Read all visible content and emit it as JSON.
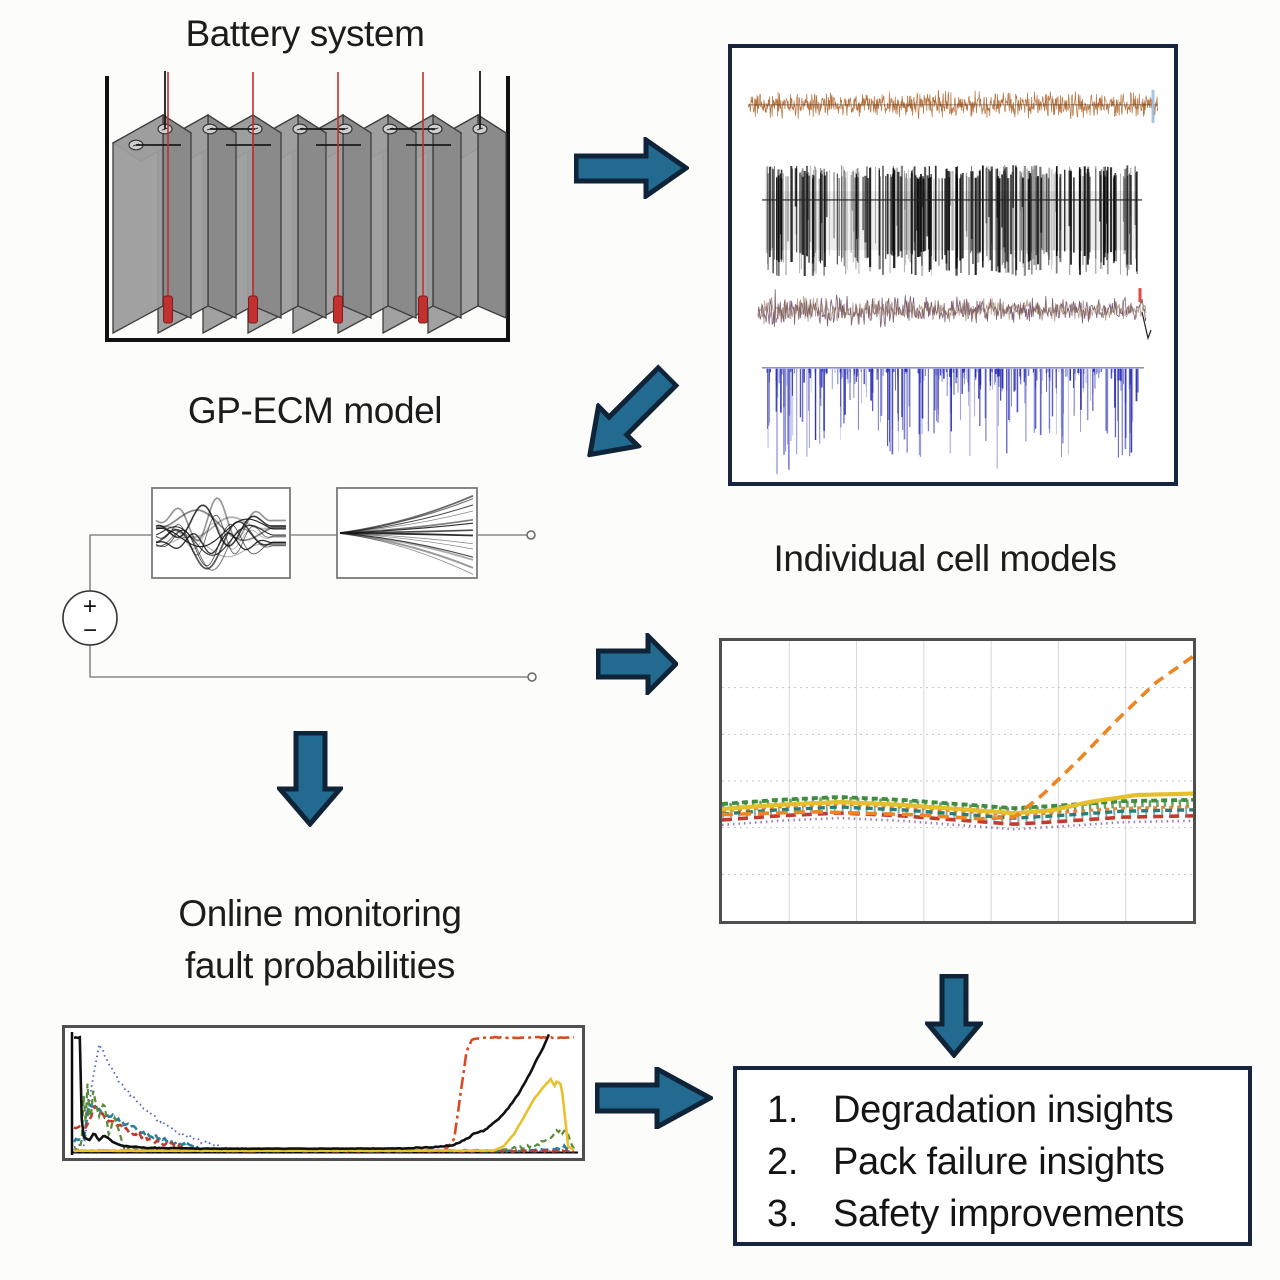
{
  "labels": {
    "battery_title": "Battery system",
    "gpecm_title": "GP-ECM model",
    "cell_models_title": "Individual cell models",
    "monitoring_title_line1": "Online monitoring",
    "monitoring_title_line2": "fault probabilities"
  },
  "insights_box": {
    "items": [
      {
        "number": "1.",
        "text": "Degradation insights"
      },
      {
        "number": "2.",
        "text": "Pack failure insights"
      },
      {
        "number": "3.",
        "text": "Safety improvements"
      }
    ]
  },
  "colors": {
    "arrow_fill": "#226a8f",
    "arrow_stroke": "#0f2438",
    "panel_border": "#17253f",
    "plot_border": "#4f4f4f",
    "title_text": "#1c1c1c"
  },
  "battery": {
    "cell_count": 8,
    "tap_positions": [
      73,
      158,
      243,
      328
    ],
    "top_color": "#b8b8b8",
    "side_color": "#8a8a8a",
    "face_color": "#9c9c9c",
    "edge_color": "#3d3d3d",
    "tap_color": "#c23030",
    "tap_edge": "#7a1f1f",
    "container_color": "#111111"
  },
  "circuit": {
    "source_plus": "+",
    "source_minus": "−",
    "gp_sample_curves": 13,
    "fan_lines": 14,
    "wire_color": "#8a8a8a",
    "box_color": "#7a7a7a"
  },
  "chart_data": [
    {
      "id": "measured-cell-signals",
      "type": "line",
      "title": "",
      "grid": false,
      "axes_visible": false,
      "description": "Raw measured time-series of the pack (qualitative noisy traces, no axis labels visible)",
      "series": [
        {
          "name": "trace-orange",
          "style": "dense-noise",
          "color": "#b26b35",
          "baseline": 0.131,
          "amplitude": 0.026,
          "tail_color": "#9bc0e6"
        },
        {
          "name": "trace-black",
          "style": "vertical-bars",
          "color": "#0a0a0a",
          "band_top": 0.27,
          "band_bottom": 0.535,
          "midline": 0.35
        },
        {
          "name": "trace-purple",
          "style": "noise-walk",
          "color": "#6f4d63",
          "color2": "#8a6a50",
          "baseline": 0.604,
          "amplitude": 0.06,
          "tick_color": "#e04030"
        },
        {
          "name": "trace-blue",
          "style": "down-spikes",
          "color": "#2b2fb5",
          "baseline": 0.737,
          "max_depth": 0.2
        }
      ]
    },
    {
      "id": "individual-cell-models",
      "type": "line",
      "title": "Individual cell models",
      "grid": true,
      "x_gridlines": 6,
      "y_gridlines": 5,
      "description": "Per-cell model parameter evolution; one cell (orange dashed) diverges upward at ~65% of the cycle axis",
      "band_keypoints": [
        [
          0,
          0.6
        ],
        [
          0.12,
          0.585
        ],
        [
          0.25,
          0.575
        ],
        [
          0.38,
          0.585
        ],
        [
          0.5,
          0.6
        ],
        [
          0.62,
          0.615
        ],
        [
          0.72,
          0.605
        ],
        [
          0.85,
          0.59
        ],
        [
          1,
          0.585
        ]
      ],
      "series": [
        {
          "name": "cell-purple-dotted",
          "color": "#8e6fae",
          "width": 2.6,
          "dash": "1.5 4",
          "offset": 16,
          "opacity": 0.9
        },
        {
          "name": "cell-red-dashed",
          "color": "#c23b2e",
          "width": 3.6,
          "dash": "10 6",
          "offset": 11,
          "opacity": 1
        },
        {
          "name": "cell-teal-dashed",
          "color": "#2a7d78",
          "width": 3.4,
          "dash": "7 5",
          "offset": 5,
          "opacity": 1
        },
        {
          "name": "band-texture-green",
          "color": "#3f8c3f",
          "width": 7,
          "dash": "2.5 5",
          "offset": -2,
          "opacity": 0.8
        },
        {
          "name": "band-texture-teal",
          "color": "#2a7d78",
          "width": 6,
          "dash": "2 6",
          "offset": 6,
          "opacity": 0.6
        },
        {
          "name": "cell-green-dashed",
          "color": "#3f8c3f",
          "width": 3.8,
          "dash": "6 4",
          "offset": -5,
          "opacity": 1
        },
        {
          "name": "cell-orange-band-segments",
          "color": "#e07b28",
          "width": 3,
          "dash": "4 4",
          "offset": 2,
          "opacity": 0.9
        },
        {
          "name": "cell-yellow-solid",
          "color": "#e5bf2c",
          "width": 4.2,
          "dash": "",
          "opacity": 1,
          "points": [
            [
              0,
              0.6
            ],
            [
              0.12,
              0.585
            ],
            [
              0.25,
              0.575
            ],
            [
              0.38,
              0.585
            ],
            [
              0.5,
              0.6
            ],
            [
              0.62,
              0.615
            ],
            [
              0.7,
              0.605
            ],
            [
              0.78,
              0.575
            ],
            [
              0.88,
              0.55
            ],
            [
              1,
              0.545
            ]
          ]
        },
        {
          "name": "cell-anomaly-orange-dashed",
          "color": "#ee8422",
          "width": 3.6,
          "dash": "11 7",
          "opacity": 1,
          "points": [
            [
              0,
              0.62
            ],
            [
              0.2,
              0.61
            ],
            [
              0.4,
              0.62
            ],
            [
              0.55,
              0.635
            ],
            [
              0.62,
              0.63
            ],
            [
              0.68,
              0.55
            ],
            [
              0.76,
              0.42
            ],
            [
              0.84,
              0.28
            ],
            [
              0.92,
              0.15
            ],
            [
              1,
              0.055
            ]
          ]
        }
      ]
    },
    {
      "id": "online-fault-probabilities",
      "type": "line",
      "title": "Online monitoring fault probabilities",
      "grid": false,
      "ylim": [
        0,
        1
      ],
      "description": "Fault probability vs time: initial transient decays to ~0; near end of life red/black/yellow channels rise sharply",
      "series": [
        {
          "name": "p-blue-dotted",
          "color": "#4a5fd0",
          "width": 1.8,
          "dash": "1.5 3.5",
          "noise": 0.015,
          "points": [
            [
              0.02,
              0.05
            ],
            [
              0.035,
              0.55
            ],
            [
              0.05,
              0.92
            ],
            [
              0.07,
              0.75
            ],
            [
              0.09,
              0.6
            ],
            [
              0.12,
              0.45
            ],
            [
              0.16,
              0.3
            ],
            [
              0.2,
              0.18
            ],
            [
              0.26,
              0.08
            ],
            [
              0.32,
              0.02
            ],
            [
              0.4,
              0.01
            ],
            [
              1,
              0.006
            ]
          ]
        },
        {
          "name": "p-teal-dashed",
          "color": "#2a7d9c",
          "width": 2.5,
          "dash": "8 4",
          "noise": 0.02,
          "points": [
            [
              0.02,
              0.1
            ],
            [
              0.03,
              0.42
            ],
            [
              0.05,
              0.35
            ],
            [
              0.08,
              0.3
            ],
            [
              0.11,
              0.22
            ],
            [
              0.15,
              0.15
            ],
            [
              0.2,
              0.08
            ],
            [
              0.26,
              0.03
            ],
            [
              0.32,
              0.012
            ],
            [
              0.9,
              0.01
            ],
            [
              0.97,
              0.03
            ],
            [
              1,
              0.05
            ]
          ]
        },
        {
          "name": "p-red-dashed",
          "color": "#c0392b",
          "width": 2.5,
          "dash": "7 4",
          "noise": 0.018,
          "points": [
            [
              0.025,
              0.2
            ],
            [
              0.04,
              0.38
            ],
            [
              0.06,
              0.3
            ],
            [
              0.09,
              0.22
            ],
            [
              0.13,
              0.14
            ],
            [
              0.18,
              0.07
            ],
            [
              0.24,
              0.02
            ],
            [
              0.3,
              0.01
            ],
            [
              1,
              0.008
            ]
          ]
        },
        {
          "name": "p-green-dashed",
          "color": "#5a8a3a",
          "width": 2.2,
          "dash": "6 4",
          "noise": 0.02,
          "points": [
            [
              0.015,
              0.02
            ],
            [
              0.018,
              0.65
            ],
            [
              0.022,
              0.15
            ],
            [
              0.027,
              0.6
            ],
            [
              0.032,
              0.2
            ],
            [
              0.038,
              0.55
            ],
            [
              0.05,
              0.3
            ],
            [
              0.06,
              0.45
            ],
            [
              0.07,
              0.12
            ],
            [
              0.08,
              0.3
            ],
            [
              0.1,
              0.05
            ],
            [
              0.14,
              0.02
            ],
            [
              0.2,
              0.012
            ],
            [
              0.85,
              0.012
            ],
            [
              0.93,
              0.06
            ],
            [
              0.97,
              0.18
            ],
            [
              0.985,
              0.16
            ],
            [
              1,
              0.03
            ]
          ]
        },
        {
          "name": "p-orangered-dashdot",
          "color": "#d84b20",
          "width": 2.6,
          "dash": "12 4 3 4",
          "noise": 0.004,
          "points": [
            [
              0.005,
              0.012
            ],
            [
              0.74,
              0.012
            ],
            [
              0.76,
              0.1
            ],
            [
              0.775,
              0.55
            ],
            [
              0.785,
              0.85
            ],
            [
              0.795,
              0.95
            ],
            [
              0.82,
              0.97
            ],
            [
              1,
              0.97
            ]
          ]
        },
        {
          "name": "p-yellow-solid",
          "color": "#e8c12d",
          "width": 2.6,
          "dash": "",
          "noise": 0.004,
          "points": [
            [
              0.005,
              0.01
            ],
            [
              0.84,
              0.012
            ],
            [
              0.86,
              0.05
            ],
            [
              0.88,
              0.15
            ],
            [
              0.9,
              0.3
            ],
            [
              0.92,
              0.45
            ],
            [
              0.945,
              0.58
            ],
            [
              0.955,
              0.62
            ],
            [
              0.96,
              0.55
            ],
            [
              0.965,
              0.6
            ],
            [
              0.975,
              0.57
            ],
            [
              0.982,
              0.3
            ],
            [
              0.988,
              0.05
            ],
            [
              1,
              0.02
            ]
          ]
        },
        {
          "name": "p-black-solid",
          "color": "#111111",
          "width": 2.6,
          "dash": "",
          "noise": 0.004,
          "points": [
            [
              0.012,
              0.97
            ],
            [
              0.014,
              0.5
            ],
            [
              0.016,
              0.2
            ],
            [
              0.02,
              0.12
            ],
            [
              0.03,
              0.1
            ],
            [
              0.04,
              0.16
            ],
            [
              0.05,
              0.1
            ],
            [
              0.06,
              0.14
            ],
            [
              0.08,
              0.08
            ],
            [
              0.1,
              0.05
            ],
            [
              0.15,
              0.035
            ],
            [
              0.3,
              0.028
            ],
            [
              0.5,
              0.028
            ],
            [
              0.65,
              0.03
            ],
            [
              0.72,
              0.04
            ],
            [
              0.76,
              0.06
            ],
            [
              0.79,
              0.12
            ],
            [
              0.8,
              0.16
            ],
            [
              0.82,
              0.18
            ],
            [
              0.85,
              0.28
            ],
            [
              0.87,
              0.38
            ],
            [
              0.89,
              0.5
            ],
            [
              0.91,
              0.65
            ],
            [
              0.925,
              0.78
            ],
            [
              0.94,
              0.9
            ],
            [
              0.95,
              1.0
            ]
          ]
        }
      ]
    }
  ]
}
